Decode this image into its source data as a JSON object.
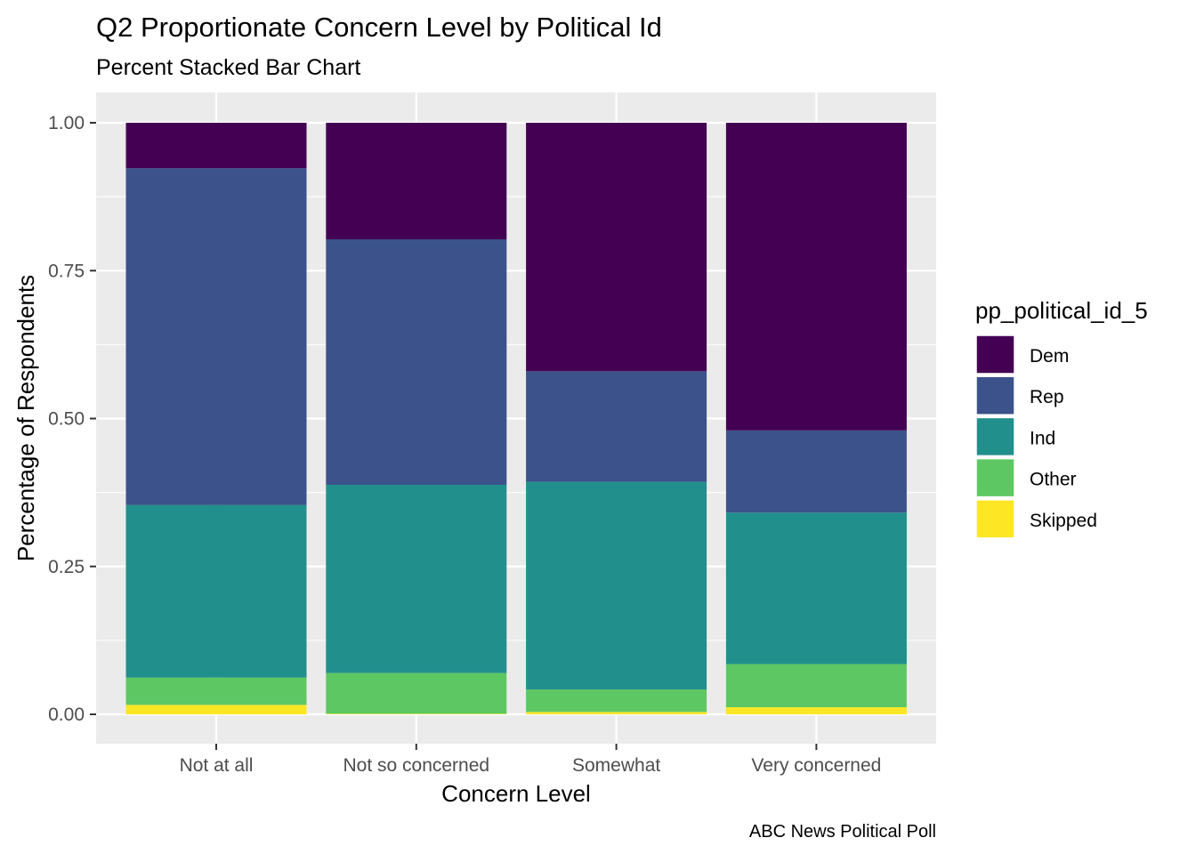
{
  "chart_data": {
    "type": "bar",
    "stacked": true,
    "percent": true,
    "title": "Q2 Proportionate Concern Level by Political Id",
    "subtitle": "Percent Stacked Bar Chart",
    "xlabel": "Concern Level",
    "ylabel": "Percentage of Respondents",
    "caption": "ABC News Political Poll",
    "categories": [
      "Not at all",
      "Not so concerned",
      "Somewhat",
      "Very concerned"
    ],
    "ylim": [
      0,
      1
    ],
    "yticks": [
      0,
      0.25,
      0.5,
      0.75,
      1
    ],
    "ytick_labels": [
      "0.00",
      "0.25",
      "0.50",
      "0.75",
      "1.00"
    ],
    "grid": true,
    "legend": {
      "title": "pp_political_id_5",
      "position": "right"
    },
    "series": [
      {
        "name": "Dem",
        "color": "#440154",
        "values": [
          0.077,
          0.197,
          0.42,
          0.52
        ]
      },
      {
        "name": "Rep",
        "color": "#3B528B",
        "values": [
          0.569,
          0.415,
          0.187,
          0.139
        ]
      },
      {
        "name": "Ind",
        "color": "#21908C",
        "values": [
          0.292,
          0.318,
          0.351,
          0.256
        ]
      },
      {
        "name": "Other",
        "color": "#5DC863",
        "values": [
          0.046,
          0.069,
          0.038,
          0.073
        ]
      },
      {
        "name": "Skipped",
        "color": "#FDE725",
        "values": [
          0.016,
          0.001,
          0.004,
          0.012
        ]
      }
    ]
  }
}
